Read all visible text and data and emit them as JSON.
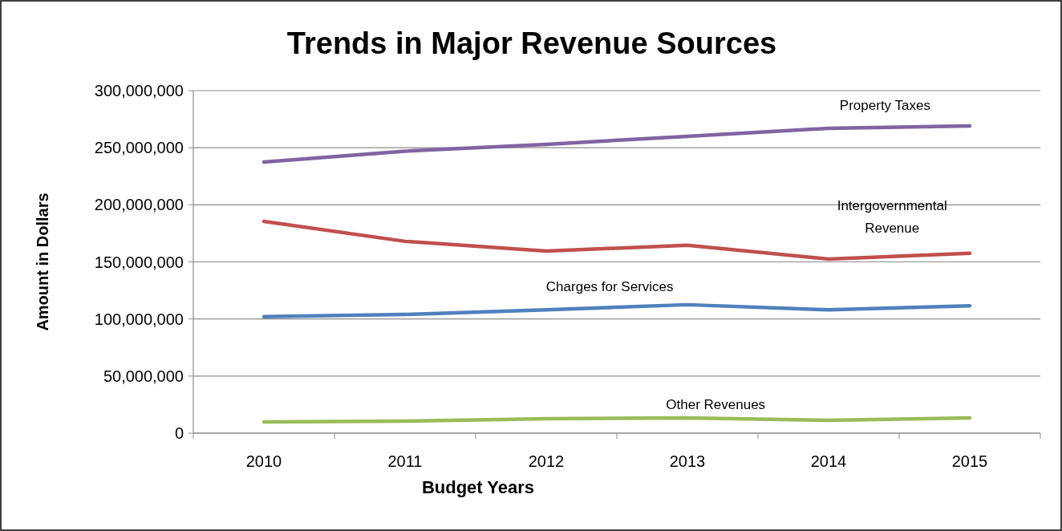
{
  "chart_data": {
    "type": "line",
    "title": "Trends in Major Revenue Sources",
    "xlabel": "Budget Years",
    "ylabel": "Amount in Dollars",
    "categories": [
      "2010",
      "2011",
      "2012",
      "2013",
      "2014",
      "2015"
    ],
    "series": [
      {
        "name": "Property Taxes",
        "color": "#8064a2",
        "values": [
          237500000,
          247000000,
          253000000,
          260000000,
          267000000,
          269000000
        ]
      },
      {
        "name": "Intergovernmental Revenue",
        "color": "#c0504d",
        "values": [
          185500000,
          168000000,
          159500000,
          164500000,
          152500000,
          157500000
        ]
      },
      {
        "name": "Charges for Services",
        "color": "#4f81bd",
        "values": [
          102000000,
          104000000,
          108000000,
          112500000,
          108000000,
          111500000
        ]
      },
      {
        "name": "Other Revenues",
        "color": "#9bbb59",
        "values": [
          9800000,
          10500000,
          12600000,
          13300000,
          11200000,
          13300000
        ]
      }
    ],
    "ylim": [
      0,
      300000000
    ],
    "yticks": [
      {
        "value": 0,
        "label": "0"
      },
      {
        "value": 50000000,
        "label": "50,000,000"
      },
      {
        "value": 100000000,
        "label": "100,000,000"
      },
      {
        "value": 150000000,
        "label": "150,000,000"
      },
      {
        "value": 200000000,
        "label": "200,000,000"
      },
      {
        "value": 250000000,
        "label": "250,000,000"
      },
      {
        "value": 300000000,
        "label": "300,000,000"
      }
    ],
    "grid": "y",
    "marker": "none",
    "line_style": "solid"
  }
}
